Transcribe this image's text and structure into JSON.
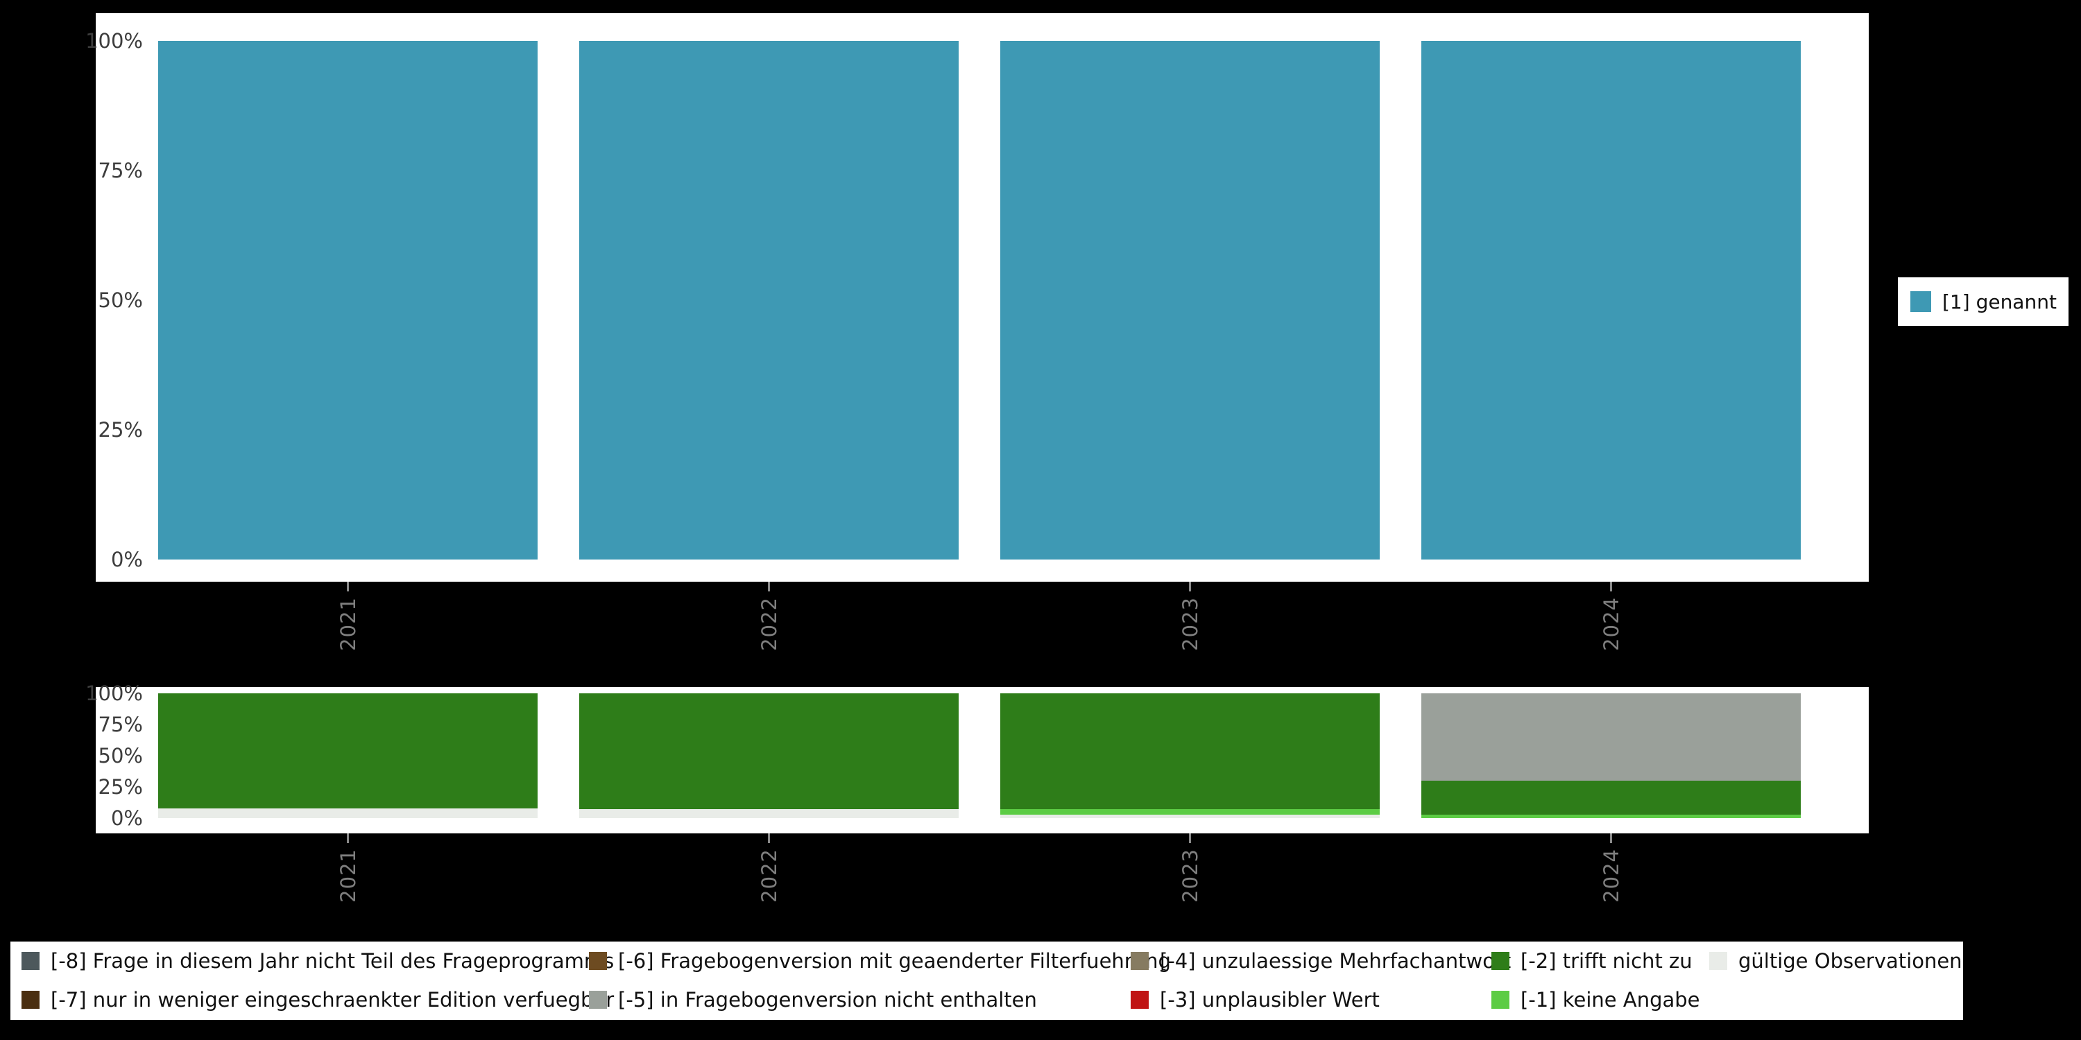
{
  "page": {
    "background": "#000000",
    "panel_background": "#ffffff"
  },
  "axis": {
    "y_tick_color": "#3d3d3d",
    "x_tick_color": "#7f7f7f"
  },
  "chart_data": [
    {
      "type": "bar",
      "stacked": true,
      "unit": "percent",
      "stack_order": "bottom-to-top",
      "categories": [
        "2021",
        "2022",
        "2023",
        "2024"
      ],
      "series": [
        {
          "name": "[1] genannt",
          "color": "#3e99b4",
          "values": [
            100,
            100,
            100,
            100
          ]
        }
      ],
      "y_ticks": [
        "100%",
        "75%",
        "50%",
        "25%",
        "0%"
      ],
      "ylim": [
        0,
        100
      ],
      "grid": false,
      "legend_position": "right"
    },
    {
      "type": "bar",
      "stacked": true,
      "unit": "percent",
      "stack_order": "bottom-to-top",
      "categories": [
        "2021",
        "2022",
        "2023",
        "2024"
      ],
      "series": [
        {
          "name": "gültige Observationen",
          "color": "#e9ece8",
          "values": [
            8,
            7,
            3,
            0
          ]
        },
        {
          "name": "[-1] keine Angabe",
          "color": "#5ccc44",
          "values": [
            0,
            0,
            4,
            3
          ]
        },
        {
          "name": "[-2] trifft nicht zu",
          "color": "#2e7d19",
          "values": [
            92,
            93,
            93,
            27
          ]
        },
        {
          "name": "[-5] in Fragebogenversion nicht enthalten",
          "color": "#9aa09a",
          "values": [
            0,
            0,
            0,
            70
          ]
        }
      ],
      "y_ticks": [
        "100%",
        "75%",
        "50%",
        "25%",
        "0%"
      ],
      "ylim": [
        0,
        100
      ],
      "grid": false,
      "legend_position": "bottom"
    }
  ],
  "bottom_legend": {
    "columns": [
      [
        {
          "label": "[-8] Frage in diesem Jahr nicht Teil des Frageprogramms",
          "color": "#4d585c"
        },
        {
          "label": "[-7] nur in weniger eingeschraenkter Edition verfuegbar",
          "color": "#4a2e10"
        }
      ],
      [
        {
          "label": "[-6] Fragebogenversion mit geaenderter Filterfuehrung",
          "color": "#6d4b21"
        },
        {
          "label": "[-5] in Fragebogenversion nicht enthalten",
          "color": "#9aa09a"
        }
      ],
      [
        {
          "label": "[-4] unzulaessige Mehrfachantwort",
          "color": "#867b61"
        },
        {
          "label": "[-3] unplausibler Wert",
          "color": "#c01414"
        }
      ],
      [
        {
          "label": "[-2] trifft nicht zu",
          "color": "#2e7d19"
        },
        {
          "label": "[-1] keine Angabe",
          "color": "#5ccc44"
        }
      ],
      [
        {
          "label": "gültige Observationen",
          "color": "#e9ece8"
        }
      ]
    ]
  }
}
